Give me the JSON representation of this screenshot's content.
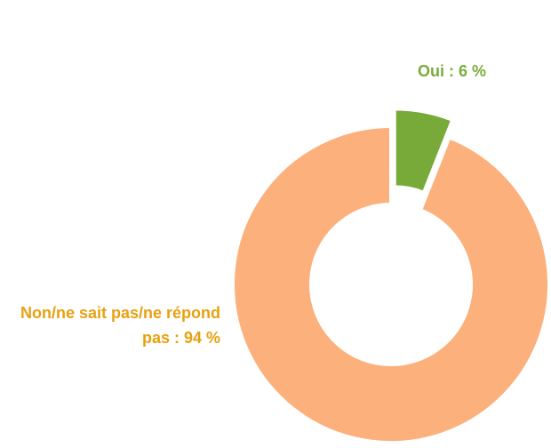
{
  "chart_data": {
    "type": "donut",
    "values": [
      6,
      94
    ],
    "value_labels": [
      "Oui : 6 %",
      "Non/ne sait pas/ne répond pas : 94 %"
    ],
    "colors": [
      "#78aa3a",
      "#fcb07b"
    ]
  }
}
